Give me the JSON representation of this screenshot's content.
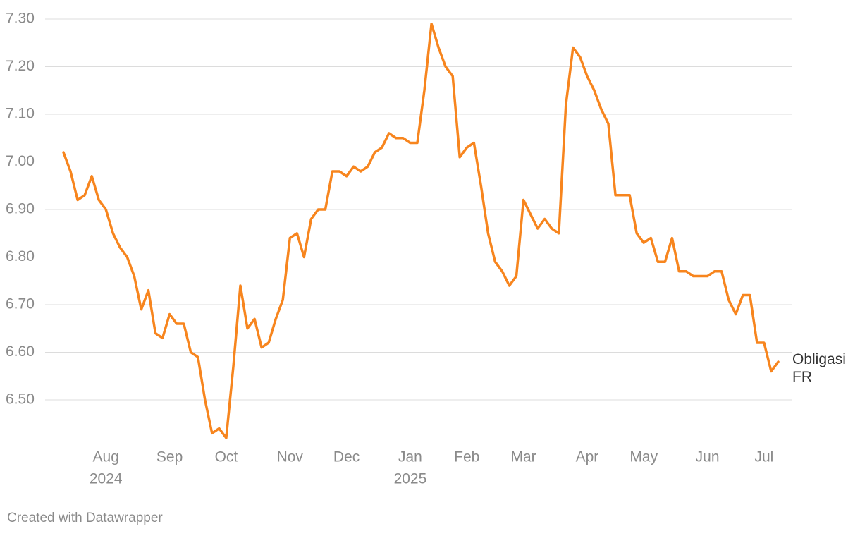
{
  "chart_data": {
    "type": "line",
    "categories": [
      null,
      null,
      null,
      null,
      null,
      null,
      [
        "Aug",
        "2024"
      ],
      null,
      null,
      null,
      null,
      null,
      null,
      null,
      null,
      "Sep",
      null,
      null,
      null,
      null,
      null,
      null,
      null,
      "Oct",
      null,
      null,
      null,
      null,
      null,
      null,
      null,
      null,
      "Nov",
      null,
      null,
      null,
      null,
      null,
      null,
      null,
      "Dec",
      null,
      null,
      null,
      null,
      null,
      null,
      null,
      null,
      [
        "Jan",
        "2025"
      ],
      null,
      null,
      null,
      null,
      null,
      null,
      null,
      "Feb",
      null,
      null,
      null,
      null,
      null,
      null,
      null,
      "Mar",
      null,
      null,
      null,
      null,
      null,
      null,
      null,
      null,
      "Apr",
      null,
      null,
      null,
      null,
      null,
      null,
      null,
      "May",
      null,
      null,
      null,
      null,
      null,
      null,
      null,
      null,
      "Jun",
      null,
      null,
      null,
      null,
      null,
      null,
      null,
      "Jul",
      null,
      null
    ],
    "series": [
      {
        "name": "Obligasi FR",
        "color": "#f7851e",
        "values": [
          7.02,
          6.98,
          6.92,
          6.93,
          6.97,
          6.92,
          6.9,
          6.85,
          6.82,
          6.8,
          6.76,
          6.69,
          6.73,
          6.64,
          6.63,
          6.68,
          6.66,
          6.66,
          6.6,
          6.59,
          6.5,
          6.43,
          6.44,
          6.42,
          6.57,
          6.74,
          6.65,
          6.67,
          6.61,
          6.62,
          6.67,
          6.71,
          6.84,
          6.85,
          6.8,
          6.88,
          6.9,
          6.9,
          6.98,
          6.98,
          6.97,
          6.99,
          6.98,
          6.99,
          7.02,
          7.03,
          7.06,
          7.05,
          7.05,
          7.04,
          7.04,
          7.15,
          7.29,
          7.24,
          7.2,
          7.18,
          7.01,
          7.03,
          7.04,
          6.95,
          6.85,
          6.79,
          6.77,
          6.74,
          6.76,
          6.92,
          6.89,
          6.86,
          6.88,
          6.86,
          6.85,
          7.12,
          7.24,
          7.22,
          7.18,
          7.15,
          7.11,
          7.08,
          6.93,
          6.93,
          6.93,
          6.85,
          6.83,
          6.84,
          6.79,
          6.79,
          6.84,
          6.77,
          6.77,
          6.76,
          6.76,
          6.76,
          6.77,
          6.77,
          6.71,
          6.68,
          6.72,
          6.72,
          6.62,
          6.62,
          6.56,
          6.58
        ]
      }
    ],
    "ylim": [
      6.42,
      7.3
    ],
    "yticks": [
      {
        "value": 6.5,
        "label": "6.50"
      },
      {
        "value": 6.6,
        "label": "6.60"
      },
      {
        "value": 6.7,
        "label": "6.70"
      },
      {
        "value": 6.8,
        "label": "6.80"
      },
      {
        "value": 6.9,
        "label": "6.90"
      },
      {
        "value": 7.0,
        "label": "7.00"
      },
      {
        "value": 7.1,
        "label": "7.10"
      },
      {
        "value": 7.2,
        "label": "7.20"
      },
      {
        "value": 7.3,
        "label": "7.30"
      }
    ],
    "grid": true,
    "credit": "Created with Datawrapper"
  }
}
